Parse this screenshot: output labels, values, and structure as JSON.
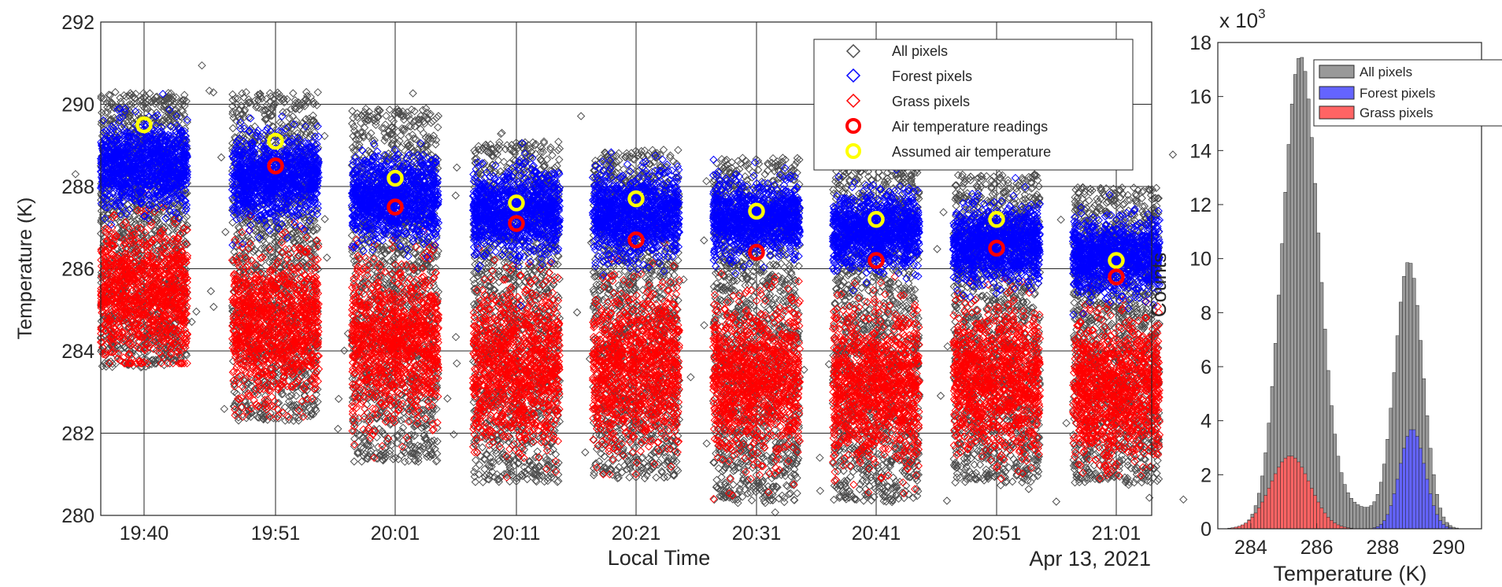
{
  "chart_data": [
    {
      "type": "scatter",
      "xlabel": "Local Time",
      "ylabel": "Temperature (K)",
      "date_label": "Apr 13, 2021",
      "ylim": [
        280,
        292
      ],
      "yticks": [
        280,
        282,
        284,
        286,
        288,
        290,
        292
      ],
      "categories": [
        "19:40",
        "19:51",
        "20:01",
        "20:11",
        "20:21",
        "20:31",
        "20:41",
        "20:51",
        "21:01"
      ],
      "grid": true,
      "legend_position": "top-right",
      "legend": [
        "All pixels",
        "Forest pixels",
        "Grass pixels",
        "Air temperature readings",
        "Assumed air temperature"
      ],
      "series": [
        {
          "name": "All pixels",
          "color": "#4d4d4d",
          "marker": "diamond",
          "min": [
            283.6,
            282.3,
            281.3,
            280.8,
            280.9,
            280.3,
            280.3,
            280.8,
            280.8
          ],
          "max": [
            290.3,
            290.3,
            289.9,
            289.1,
            288.9,
            288.7,
            288.5,
            288.3,
            288.0
          ]
        },
        {
          "name": "Forest pixels",
          "color": "#0000ff",
          "marker": "diamond",
          "center": [
            288.5,
            288.2,
            287.7,
            287.4,
            287.3,
            287.2,
            286.9,
            286.6,
            286.3
          ],
          "spread": [
            0.8,
            0.8,
            0.8,
            0.8,
            0.8,
            0.7,
            0.7,
            0.7,
            0.7
          ]
        },
        {
          "name": "Grass pixels",
          "color": "#ff0000",
          "marker": "diamond",
          "center": [
            285.4,
            284.6,
            284.2,
            283.6,
            283.6,
            283.3,
            283.1,
            283.3,
            283.0
          ],
          "spread": [
            1.1,
            1.2,
            1.3,
            1.3,
            1.3,
            1.3,
            1.3,
            1.2,
            1.2
          ]
        },
        {
          "name": "Air temperature readings",
          "color": "#ff0000",
          "marker": "circle",
          "values": [
            null,
            288.5,
            287.5,
            287.1,
            286.7,
            286.4,
            286.2,
            286.5,
            285.8
          ]
        },
        {
          "name": "Assumed air temperature",
          "color": "#ffff00",
          "marker": "circle",
          "values": [
            289.5,
            289.1,
            288.2,
            287.6,
            287.7,
            287.4,
            287.2,
            287.2,
            286.2
          ]
        }
      ]
    },
    {
      "type": "histogram",
      "xlabel": "Temperature (K)",
      "ylabel": "Counts",
      "exponent_label": "x 10",
      "exponent_power": "3",
      "xlim": [
        283,
        291
      ],
      "xticks": [
        284,
        286,
        288,
        290
      ],
      "ylim": [
        0,
        18
      ],
      "yticks": [
        0,
        2,
        4,
        6,
        8,
        10,
        12,
        14,
        16,
        18
      ],
      "bin_width_K": 0.1,
      "legend_position": "top-right",
      "legend": [
        "All pixels",
        "Forest pixels",
        "Grass pixels"
      ],
      "series": [
        {
          "name": "All pixels",
          "color": "#999999",
          "components": [
            {
              "mu": 285.5,
              "sigma": 0.55,
              "amp": 17.3
            },
            {
              "mu": 288.8,
              "sigma": 0.42,
              "amp": 9.8
            },
            {
              "mu": 287.0,
              "sigma": 0.9,
              "amp": 0.8
            }
          ]
        },
        {
          "name": "Forest pixels",
          "color": "#6464ff",
          "components": [
            {
              "mu": 288.9,
              "sigma": 0.38,
              "amp": 3.7
            }
          ]
        },
        {
          "name": "Grass pixels",
          "color": "#ff6464",
          "components": [
            {
              "mu": 285.2,
              "sigma": 0.6,
              "amp": 2.7
            }
          ]
        }
      ]
    }
  ]
}
